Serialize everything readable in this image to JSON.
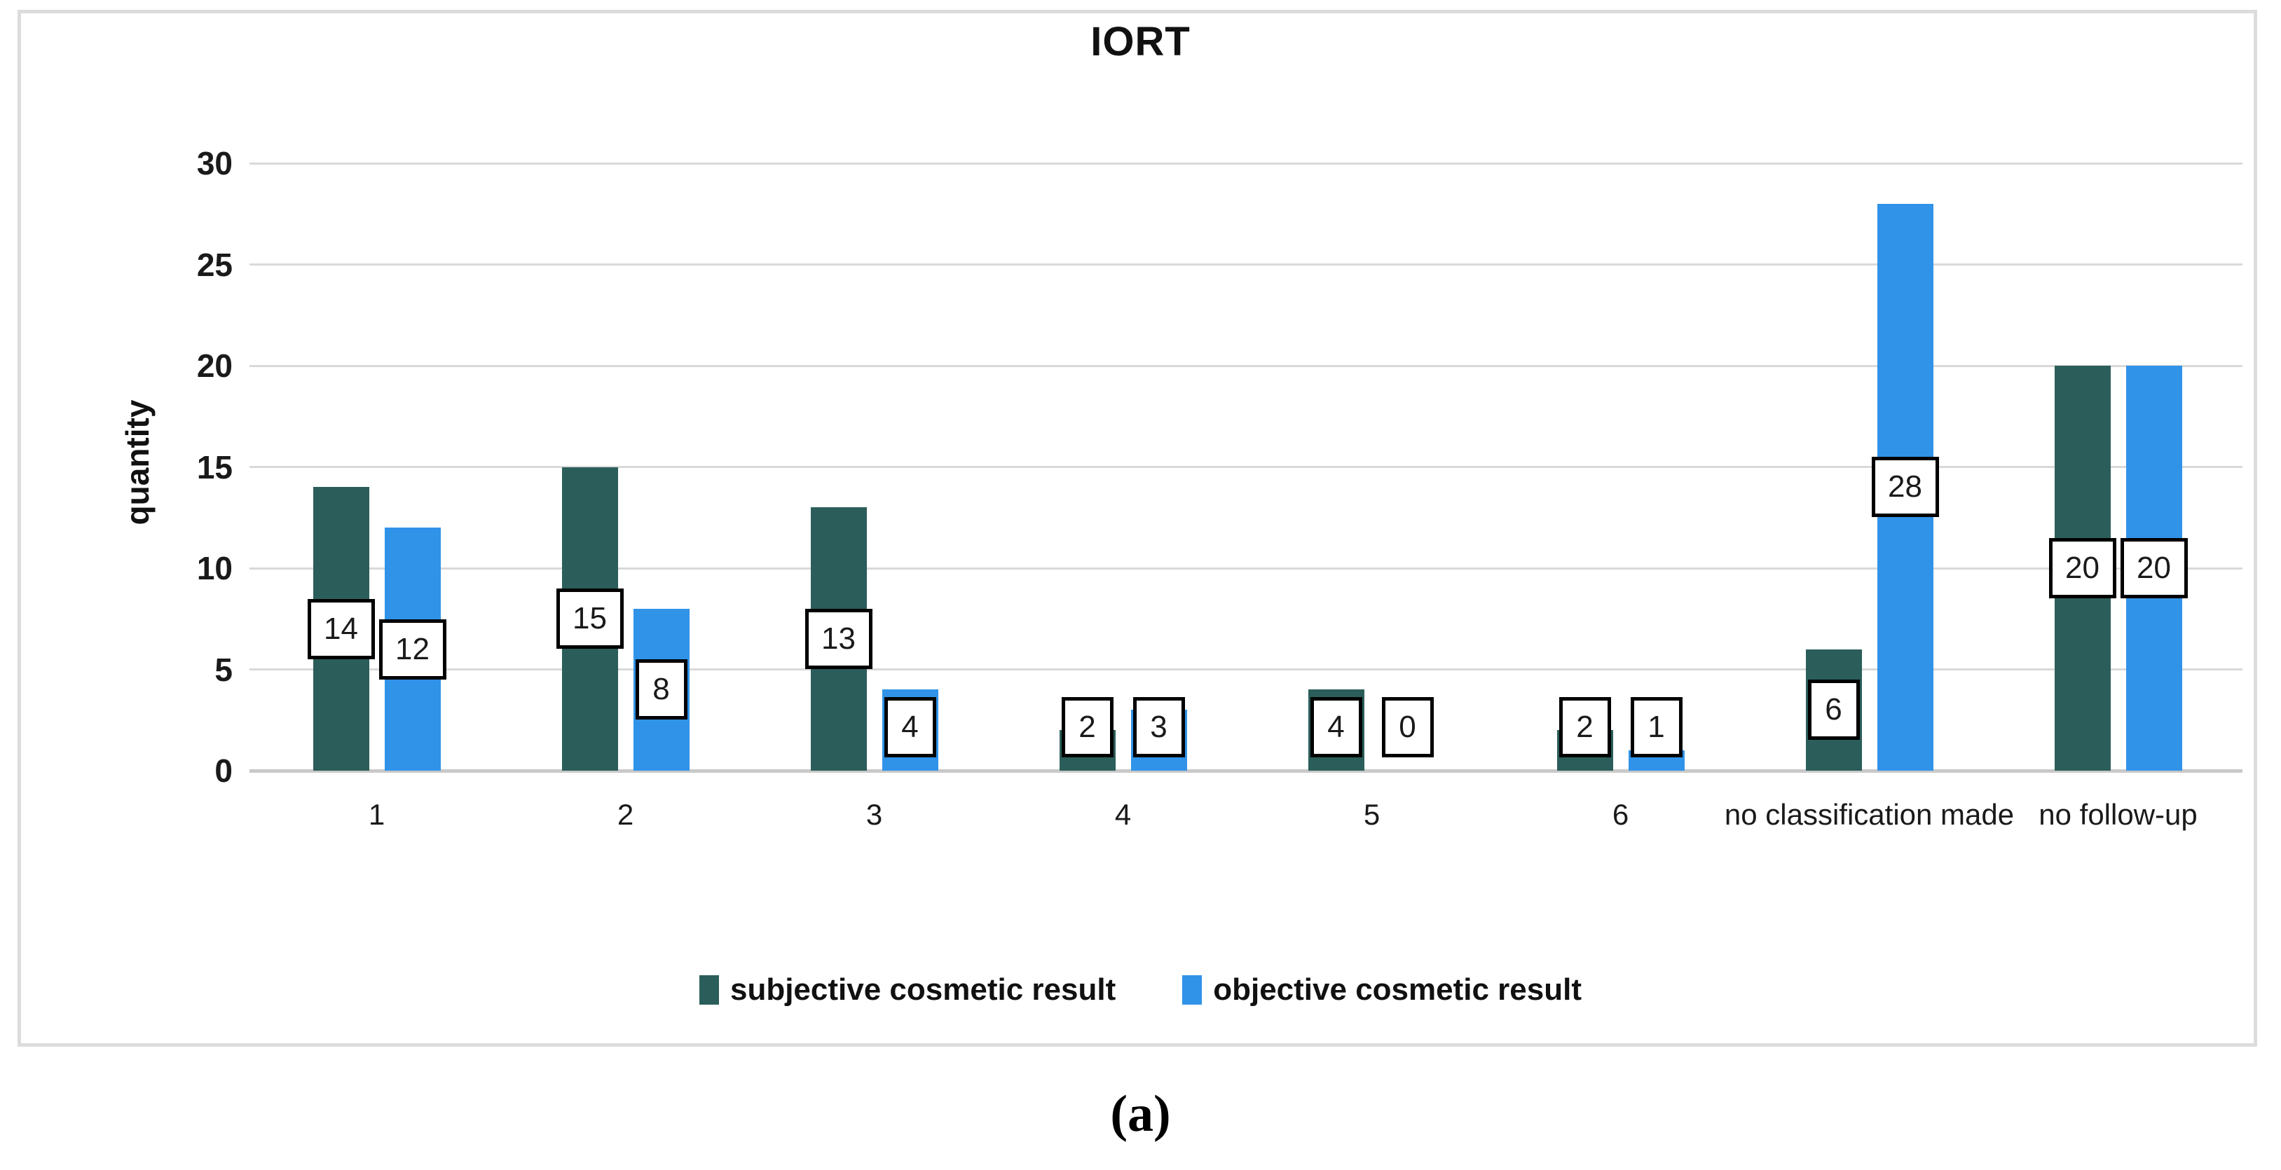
{
  "caption": "(a)",
  "chart_data": {
    "type": "bar",
    "title": "IORT",
    "xlabel": "",
    "ylabel": "quantity",
    "ylim": [
      0,
      30
    ],
    "yticks": [
      0,
      5,
      10,
      15,
      20,
      25,
      30
    ],
    "grid": true,
    "legend_position": "bottom",
    "data_labels": true,
    "categories": [
      "1",
      "2",
      "3",
      "4",
      "5",
      "6",
      "no classification made",
      "no follow-up"
    ],
    "categories_display": [
      "1",
      "2",
      "3",
      "4",
      "5",
      "6",
      "no classification\nmade",
      "no follow-up"
    ],
    "series": [
      {
        "key": "subjective",
        "name": "subjective cosmetic result",
        "color": "#2B5E5A",
        "values": [
          14,
          15,
          13,
          2,
          4,
          2,
          6,
          20
        ]
      },
      {
        "key": "objective",
        "name": "objective cosmetic result",
        "color": "#3093E8",
        "values": [
          12,
          8,
          4,
          3,
          0,
          1,
          28,
          20
        ]
      }
    ],
    "colors": {
      "gridline": "#d9d9d9",
      "axis_line": "#c9c9c9",
      "figure_border": "#dcdcdc",
      "label_box_border": "#000000",
      "label_box_fill": "#ffffff"
    }
  }
}
